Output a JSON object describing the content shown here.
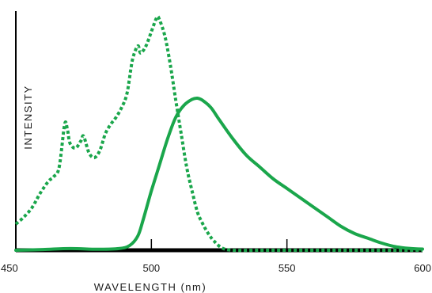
{
  "chart_data": {
    "type": "line",
    "title": "",
    "xlabel": "WAVELENGTH (nm)",
    "ylabel": "INTENSITY",
    "xlim": [
      450,
      600
    ],
    "ylim": [
      0,
      1
    ],
    "xticks": [
      450,
      500,
      550,
      600
    ],
    "grid": false,
    "legend": "none",
    "series": [
      {
        "style": "dotted",
        "color": "#1aa64b",
        "points": [
          [
            450,
            0.11
          ],
          [
            453,
            0.14
          ],
          [
            456,
            0.18
          ],
          [
            459,
            0.24
          ],
          [
            462,
            0.29
          ],
          [
            464,
            0.31
          ],
          [
            466,
            0.35
          ],
          [
            468,
            0.53
          ],
          [
            469,
            0.51
          ],
          [
            470,
            0.45
          ],
          [
            472,
            0.43
          ],
          [
            474,
            0.46
          ],
          [
            475,
            0.48
          ],
          [
            477,
            0.41
          ],
          [
            479,
            0.39
          ],
          [
            481,
            0.42
          ],
          [
            483,
            0.49
          ],
          [
            485,
            0.53
          ],
          [
            487,
            0.56
          ],
          [
            489,
            0.6
          ],
          [
            491,
            0.66
          ],
          [
            493,
            0.8
          ],
          [
            495,
            0.86
          ],
          [
            496,
            0.83
          ],
          [
            498,
            0.86
          ],
          [
            500,
            0.92
          ],
          [
            502,
            0.98
          ],
          [
            503,
            0.97
          ],
          [
            505,
            0.9
          ],
          [
            507,
            0.78
          ],
          [
            509,
            0.63
          ],
          [
            511,
            0.49
          ],
          [
            513,
            0.35
          ],
          [
            515,
            0.25
          ],
          [
            517,
            0.16
          ],
          [
            519,
            0.11
          ],
          [
            521,
            0.07
          ],
          [
            523,
            0.04
          ],
          [
            526,
            0.01
          ],
          [
            530,
            0.0
          ],
          [
            540,
            0.0
          ],
          [
            550,
            0.0
          ],
          [
            560,
            0.0
          ],
          [
            570,
            0.0
          ],
          [
            580,
            0.0
          ],
          [
            590,
            0.0
          ],
          [
            600,
            0.0
          ]
        ]
      },
      {
        "style": "solid",
        "color": "#1aa64b",
        "points": [
          [
            450,
            0.0
          ],
          [
            460,
            0.003
          ],
          [
            470,
            0.007
          ],
          [
            480,
            0.004
          ],
          [
            488,
            0.007
          ],
          [
            492,
            0.02
          ],
          [
            495,
            0.06
          ],
          [
            497,
            0.13
          ],
          [
            500,
            0.25
          ],
          [
            503,
            0.36
          ],
          [
            506,
            0.47
          ],
          [
            509,
            0.56
          ],
          [
            512,
            0.61
          ],
          [
            515,
            0.635
          ],
          [
            517,
            0.64
          ],
          [
            519,
            0.63
          ],
          [
            522,
            0.6
          ],
          [
            525,
            0.55
          ],
          [
            530,
            0.47
          ],
          [
            535,
            0.4
          ],
          [
            540,
            0.35
          ],
          [
            545,
            0.3
          ],
          [
            550,
            0.26
          ],
          [
            555,
            0.22
          ],
          [
            560,
            0.18
          ],
          [
            565,
            0.14
          ],
          [
            570,
            0.1
          ],
          [
            575,
            0.07
          ],
          [
            580,
            0.05
          ],
          [
            585,
            0.03
          ],
          [
            590,
            0.015
          ],
          [
            595,
            0.008
          ],
          [
            600,
            0.005
          ]
        ]
      }
    ]
  }
}
